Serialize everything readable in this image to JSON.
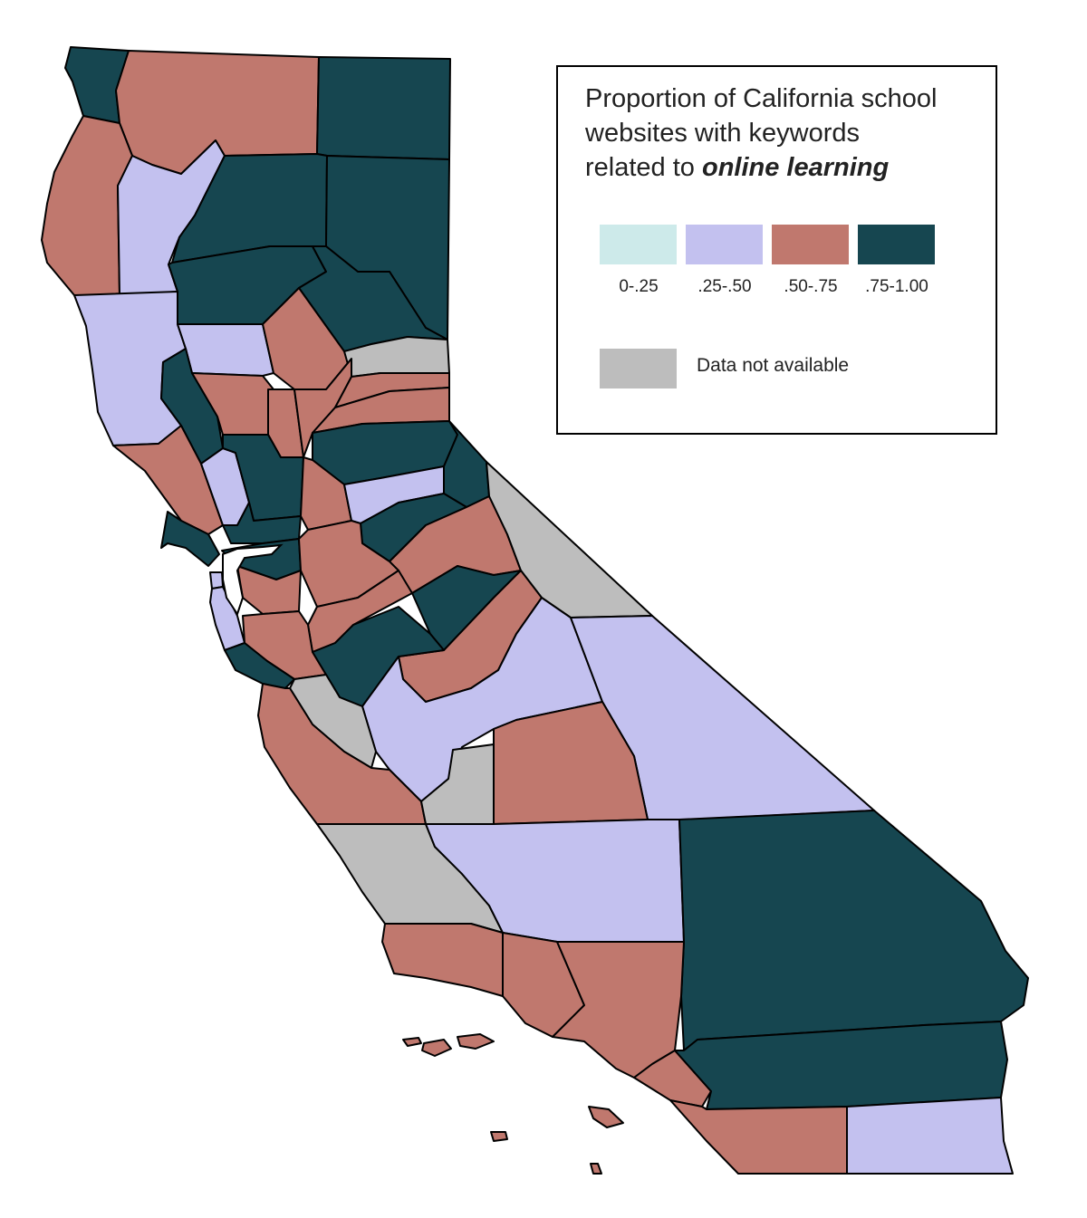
{
  "legend": {
    "title_line1": "Proportion of California school",
    "title_line2": "websites with keywords",
    "title_line3_prefix": "related to ",
    "title_line3_emphasis": "online learning",
    "categories": [
      {
        "label": "0-.25",
        "color": "#cdeaea"
      },
      {
        "label": ".25-.50",
        "color": "#c3c1ef"
      },
      {
        "label": ".50-.75",
        "color": "#c0786e"
      },
      {
        "label": ".75-1.00",
        "color": "#164650"
      }
    ],
    "not_available": {
      "label": "Data not available",
      "color": "#bdbdbd"
    }
  },
  "counties": [
    {
      "id": "del-norte",
      "class": ".75-1.00"
    },
    {
      "id": "siskiyou",
      "class": ".50-.75"
    },
    {
      "id": "modoc",
      "class": ".75-1.00"
    },
    {
      "id": "humboldt",
      "class": ".50-.75"
    },
    {
      "id": "trinity",
      "class": ".25-.50"
    },
    {
      "id": "shasta",
      "class": ".75-1.00"
    },
    {
      "id": "lassen",
      "class": ".75-1.00"
    },
    {
      "id": "tehama",
      "class": ".75-1.00"
    },
    {
      "id": "plumas",
      "class": ".75-1.00"
    },
    {
      "id": "mendocino",
      "class": ".25-.50"
    },
    {
      "id": "glenn",
      "class": ".25-.50"
    },
    {
      "id": "butte",
      "class": ".50-.75"
    },
    {
      "id": "sierra",
      "class": "n/a"
    },
    {
      "id": "lake",
      "class": ".75-1.00"
    },
    {
      "id": "colusa",
      "class": ".50-.75"
    },
    {
      "id": "sutter",
      "class": ".50-.75"
    },
    {
      "id": "yuba",
      "class": ".50-.75"
    },
    {
      "id": "nevada",
      "class": ".50-.75"
    },
    {
      "id": "placer",
      "class": ".50-.75"
    },
    {
      "id": "el-dorado",
      "class": ".75-1.00"
    },
    {
      "id": "alpine",
      "class": ".75-1.00"
    },
    {
      "id": "sonoma",
      "class": ".50-.75"
    },
    {
      "id": "napa",
      "class": ".25-.50"
    },
    {
      "id": "yolo",
      "class": ".75-1.00"
    },
    {
      "id": "sacramento",
      "class": ".50-.75"
    },
    {
      "id": "amador",
      "class": ".25-.50"
    },
    {
      "id": "calaveras",
      "class": ".75-1.00"
    },
    {
      "id": "tuolumne",
      "class": ".50-.75"
    },
    {
      "id": "mono",
      "class": "n/a"
    },
    {
      "id": "marin",
      "class": ".75-1.00"
    },
    {
      "id": "solano",
      "class": ".75-1.00"
    },
    {
      "id": "contra-costa",
      "class": ".75-1.00"
    },
    {
      "id": "san-joaquin",
      "class": ".50-.75"
    },
    {
      "id": "stanislaus",
      "class": ".50-.75"
    },
    {
      "id": "mariposa",
      "class": ".75-1.00"
    },
    {
      "id": "madera",
      "class": ".50-.75"
    },
    {
      "id": "san-francisco",
      "class": ".25-.50"
    },
    {
      "id": "san-mateo",
      "class": ".25-.50"
    },
    {
      "id": "alameda",
      "class": ".50-.75"
    },
    {
      "id": "santa-clara",
      "class": ".50-.75"
    },
    {
      "id": "santa-cruz",
      "class": ".75-1.00"
    },
    {
      "id": "merced",
      "class": ".75-1.00"
    },
    {
      "id": "fresno",
      "class": ".25-.50"
    },
    {
      "id": "inyo",
      "class": ".25-.50"
    },
    {
      "id": "san-benito",
      "class": "n/a"
    },
    {
      "id": "monterey",
      "class": ".50-.75"
    },
    {
      "id": "kings",
      "class": "n/a"
    },
    {
      "id": "tulare",
      "class": ".50-.75"
    },
    {
      "id": "san-luis-obispo",
      "class": "n/a"
    },
    {
      "id": "kern",
      "class": ".25-.50"
    },
    {
      "id": "san-bernardino",
      "class": ".75-1.00"
    },
    {
      "id": "santa-barbara",
      "class": ".50-.75"
    },
    {
      "id": "ventura",
      "class": ".50-.75"
    },
    {
      "id": "los-angeles",
      "class": ".50-.75"
    },
    {
      "id": "orange",
      "class": ".50-.75"
    },
    {
      "id": "riverside",
      "class": ".75-1.00"
    },
    {
      "id": "san-diego",
      "class": ".50-.75"
    },
    {
      "id": "imperial",
      "class": ".25-.50"
    }
  ]
}
